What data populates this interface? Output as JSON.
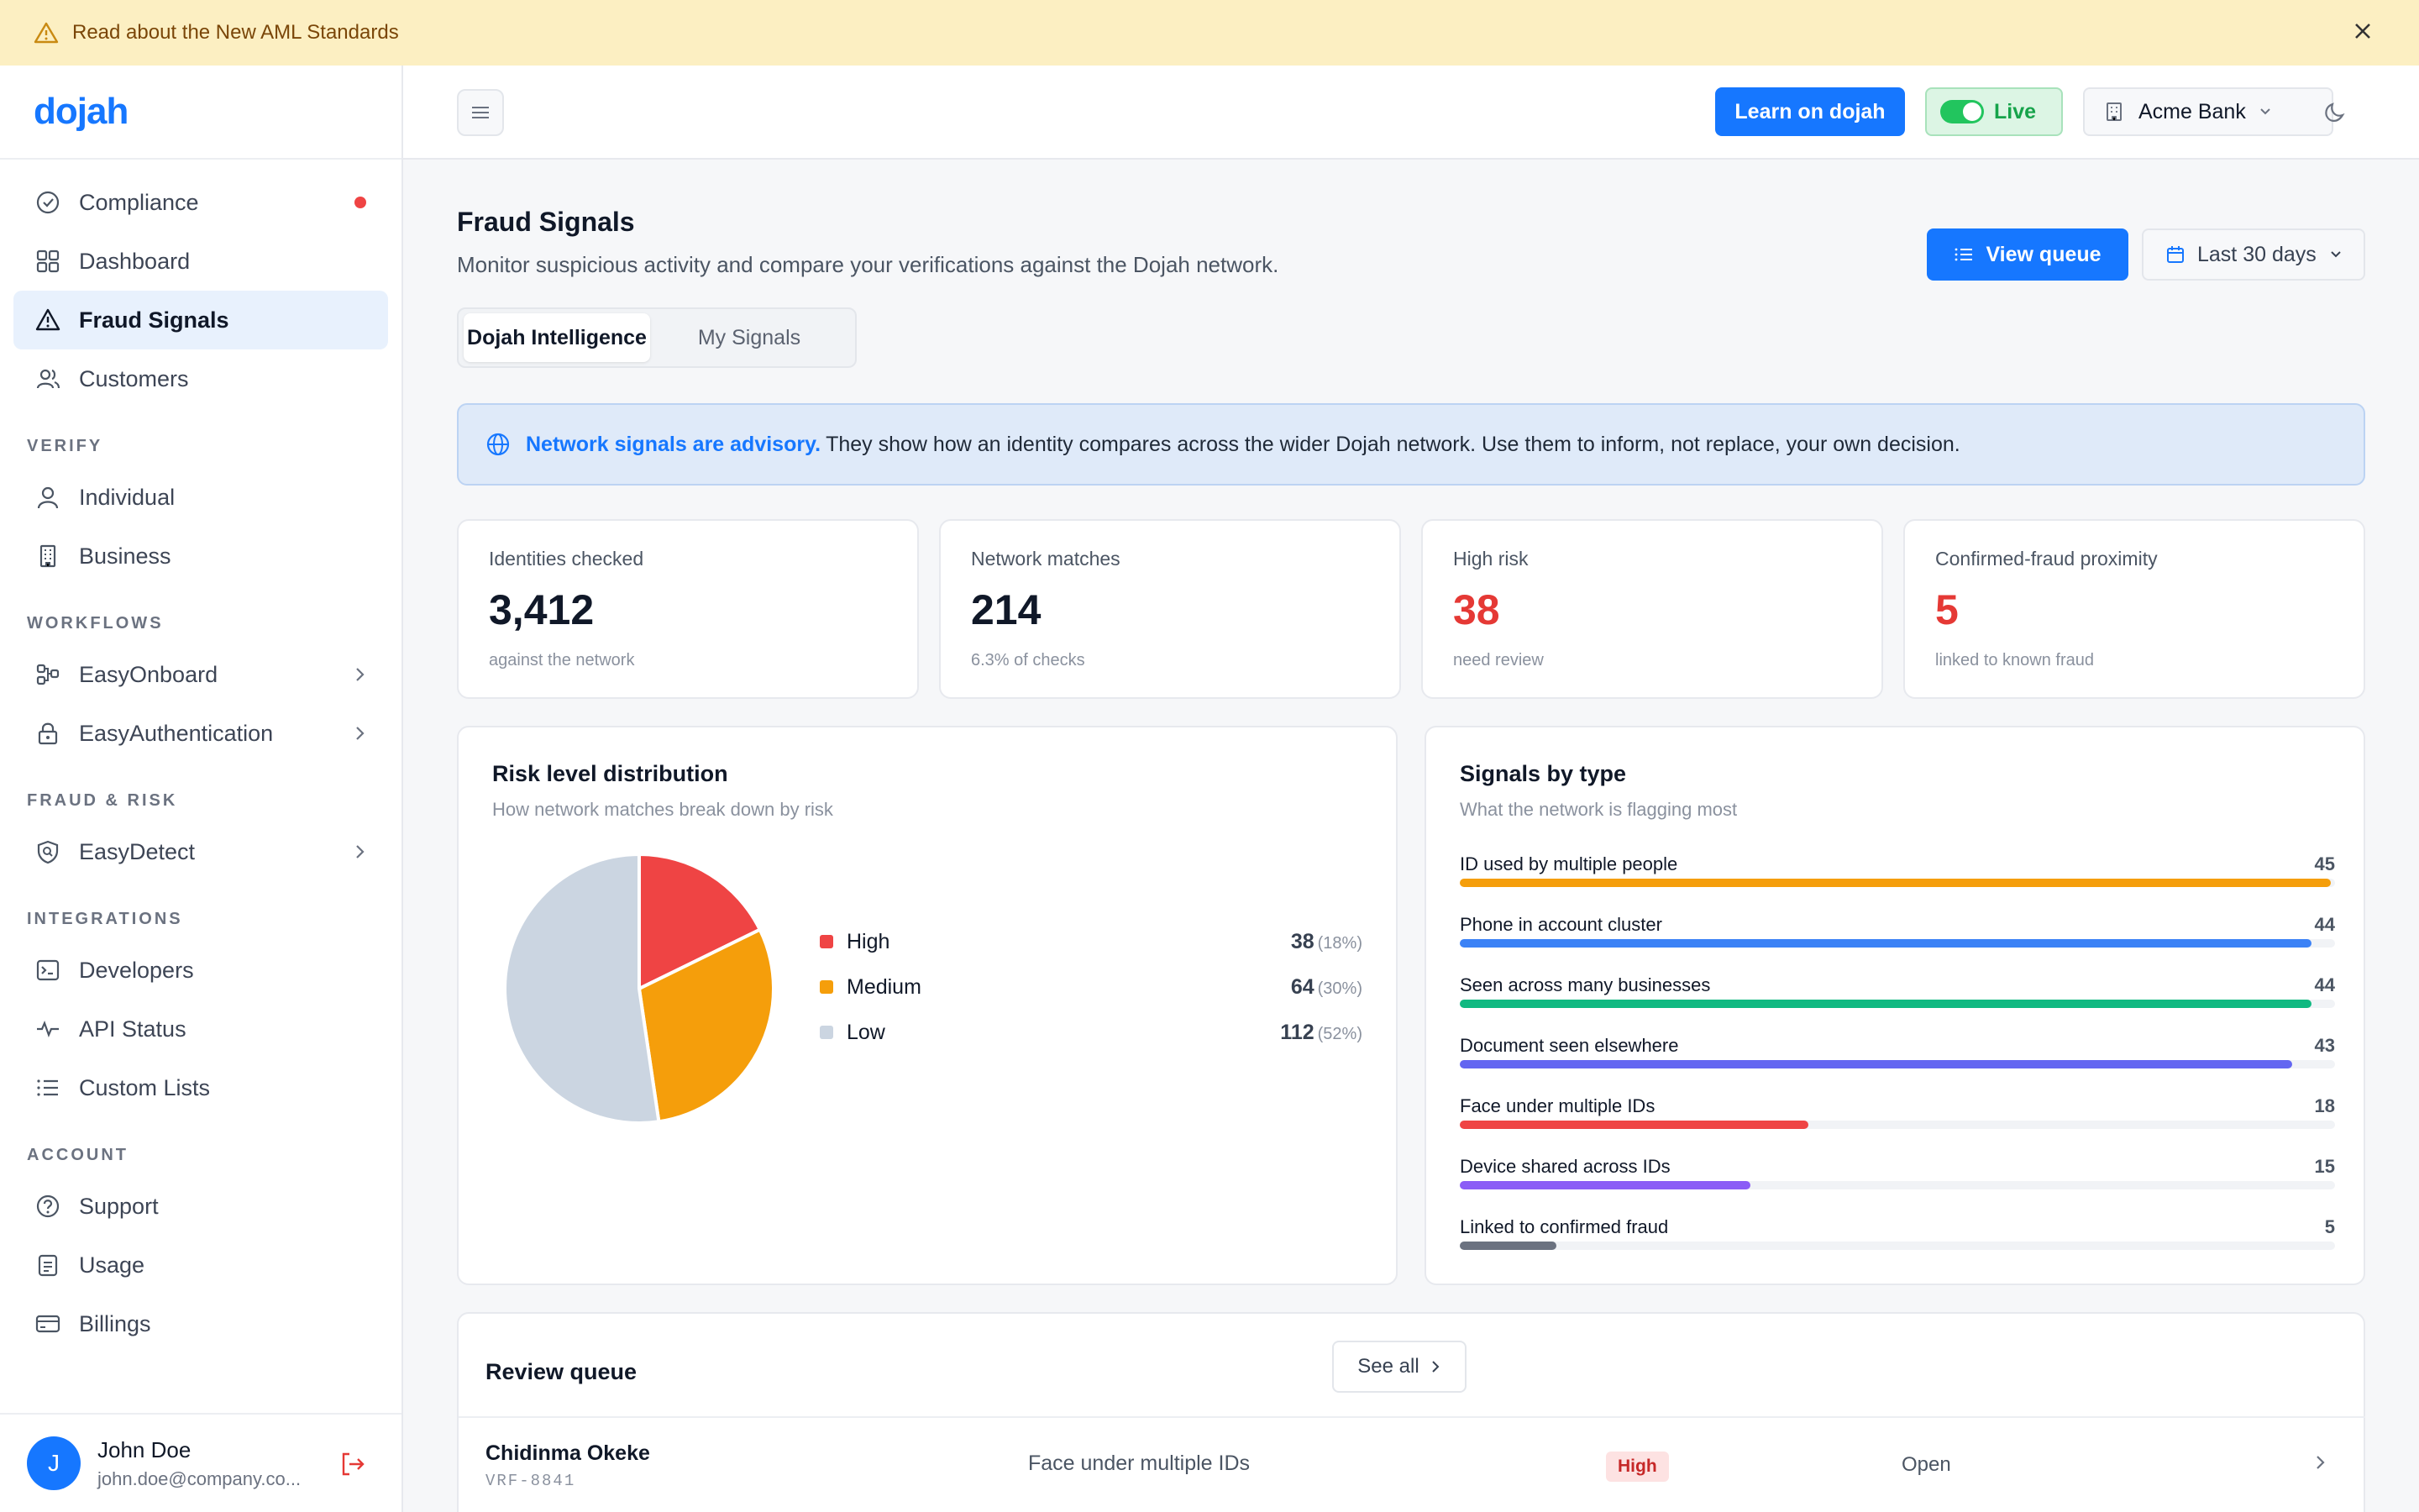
{
  "banner": {
    "text": "Read about the New AML Standards",
    "icon": "warning-icon"
  },
  "brand": {
    "logo": "dojah",
    "accent": "#1677ff"
  },
  "sidebar": {
    "top_items": [
      {
        "label": "Compliance",
        "icon": "check-circle-icon",
        "dot": true
      },
      {
        "label": "Dashboard",
        "icon": "grid-icon"
      },
      {
        "label": "Fraud Signals",
        "icon": "alert-triangle-icon",
        "active": true
      },
      {
        "label": "Customers",
        "icon": "users-icon"
      }
    ],
    "sections": {
      "verify": {
        "title": "VERIFY",
        "items": [
          "Individual",
          "Business"
        ]
      },
      "workflows": {
        "title": "WORKFLOWS",
        "items": [
          "EasyOnboard",
          "EasyAuthentication"
        ]
      },
      "fraud": {
        "title": "FRAUD & RISK",
        "items": [
          "EasyDetect"
        ]
      },
      "integrations": {
        "title": "INTEGRATIONS",
        "items": [
          "Developers",
          "API Status",
          "Custom Lists"
        ]
      },
      "account": {
        "title": "ACCOUNT",
        "items": [
          "Support",
          "Usage",
          "Billings"
        ]
      }
    },
    "user": {
      "initial": "J",
      "name": "John Doe",
      "email": "john.doe@company.co..."
    }
  },
  "topbar": {
    "learn": "Learn on dojah",
    "live": "Live",
    "org": "Acme Bank"
  },
  "page": {
    "title": "Fraud Signals",
    "subtitle": "Monitor suspicious activity and compare your verifications against the Dojah network.",
    "view_queue": "View queue",
    "date_range": "Last 30 days",
    "tabs": [
      "Dojah Intelligence",
      "My Signals"
    ],
    "alert_bold": "Network signals are advisory.",
    "alert_text": "They show how an identity compares across the wider Dojah network. Use them to inform, not replace, your own decision."
  },
  "kpis": [
    {
      "label": "Identities checked",
      "value": "3,412",
      "sub": "against the network"
    },
    {
      "label": "Network matches",
      "value": "214",
      "sub": "6.3% of checks"
    },
    {
      "label": "High risk",
      "value": "38",
      "sub": "need review",
      "red": true
    },
    {
      "label": "Confirmed-fraud proximity",
      "value": "5",
      "sub": "linked to known fraud",
      "red": true
    }
  ],
  "risk": {
    "title": "Risk level distribution",
    "subtitle": "How network matches break down by risk",
    "legend": [
      {
        "name": "High",
        "value": "38",
        "pct": "(18%)",
        "color": "#ef4444"
      },
      {
        "name": "Medium",
        "value": "64",
        "pct": "(30%)",
        "color": "#f59e0b"
      },
      {
        "name": "Low",
        "value": "112",
        "pct": "(52%)",
        "color": "#cbd5e1"
      }
    ]
  },
  "signals": {
    "title": "Signals by type",
    "subtitle": "What the network is flagging most",
    "items": [
      {
        "label": "ID used by multiple people",
        "value": "45",
        "color": "#f59e0b"
      },
      {
        "label": "Phone in account cluster",
        "value": "44",
        "color": "#3b82f6"
      },
      {
        "label": "Seen across many businesses",
        "value": "44",
        "color": "#10b981"
      },
      {
        "label": "Document seen elsewhere",
        "value": "43",
        "color": "#6366f1"
      },
      {
        "label": "Face under multiple IDs",
        "value": "18",
        "color": "#ef4444"
      },
      {
        "label": "Device shared across IDs",
        "value": "15",
        "color": "#8b5cf6"
      },
      {
        "label": "Linked to confirmed fraud",
        "value": "5",
        "color": "#6b7280"
      }
    ]
  },
  "queue": {
    "title": "Review queue",
    "see_all": "See all",
    "rows": [
      {
        "name": "Chidinma Okeke",
        "id": "VRF-8841",
        "signal": "Face under multiple IDs",
        "risk": "High",
        "status": "Open"
      }
    ]
  },
  "chart_data": {
    "type": "pie",
    "title": "Risk level distribution",
    "categories": [
      "High",
      "Medium",
      "Low"
    ],
    "values": [
      38,
      64,
      112
    ],
    "colors": [
      "#ef4444",
      "#f59e0b",
      "#cbd5e1"
    ]
  }
}
